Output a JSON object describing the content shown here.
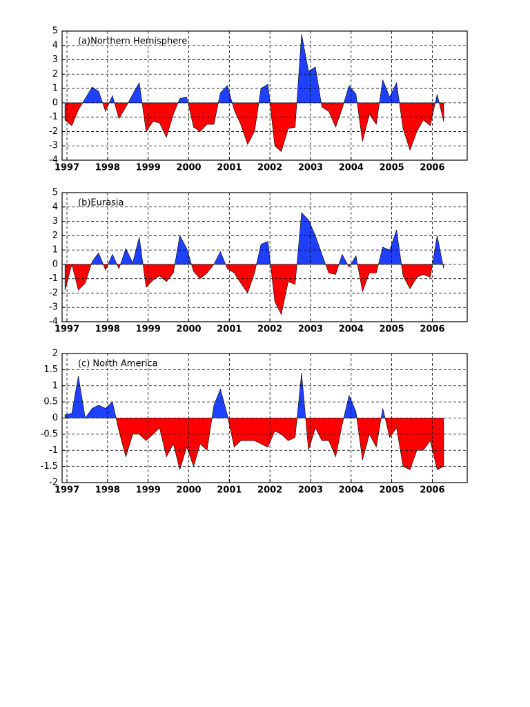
{
  "chart_data": [
    {
      "type": "area",
      "title": "(a)Northern Hemisphere",
      "xlim": [
        1996.88,
        2006.86
      ],
      "ylim": [
        -4,
        5
      ],
      "xticks": [
        1997,
        1998,
        1999,
        2000,
        2001,
        2002,
        2003,
        2004,
        2005,
        2006
      ],
      "yticks": [
        -4,
        -3,
        -2,
        -1,
        0,
        1,
        2,
        3,
        4,
        5
      ],
      "grid": true,
      "positive_color": "#2040ff",
      "negative_color": "#ff0000",
      "x": [
        1996.95,
        1997.12,
        1997.28,
        1997.45,
        1997.62,
        1997.78,
        1997.95,
        1998.12,
        1998.28,
        1998.45,
        1998.62,
        1998.78,
        1998.95,
        1999.12,
        1999.28,
        1999.45,
        1999.62,
        1999.78,
        1999.95,
        2000.12,
        2000.28,
        2000.45,
        2000.62,
        2000.78,
        2000.95,
        2001.12,
        2001.28,
        2001.45,
        2001.62,
        2001.78,
        2001.95,
        2002.12,
        2002.28,
        2002.45,
        2002.62,
        2002.78,
        2002.95,
        2003.12,
        2003.28,
        2003.45,
        2003.62,
        2003.78,
        2003.95,
        2004.12,
        2004.28,
        2004.45,
        2004.62,
        2004.78,
        2004.95,
        2005.12,
        2005.28,
        2005.45,
        2005.62,
        2005.78,
        2005.95,
        2006.12,
        2006.28
      ],
      "values": [
        -1.2,
        -1.6,
        -0.5,
        0.3,
        1.1,
        0.8,
        -0.6,
        0.5,
        -1.1,
        -0.3,
        0.6,
        1.4,
        -2.0,
        -1.3,
        -1.4,
        -2.4,
        -0.8,
        0.3,
        0.4,
        -1.7,
        -2.0,
        -1.5,
        -1.5,
        0.7,
        1.2,
        -0.5,
        -1.5,
        -2.9,
        -2.0,
        1.0,
        1.3,
        -3.0,
        -3.4,
        -1.8,
        -1.7,
        4.8,
        2.2,
        2.5,
        -0.3,
        -0.6,
        -1.7,
        -0.4,
        1.2,
        0.6,
        -2.7,
        -0.8,
        -1.5,
        1.6,
        0.4,
        1.4,
        -1.8,
        -3.3,
        -2.0,
        -1.2,
        -1.6,
        0.6,
        -1.3
      ]
    },
    {
      "type": "area",
      "title": "(b)Eurasia",
      "xlim": [
        1996.88,
        2006.86
      ],
      "ylim": [
        -4,
        5
      ],
      "xticks": [
        1997,
        1998,
        1999,
        2000,
        2001,
        2002,
        2003,
        2004,
        2005,
        2006
      ],
      "yticks": [
        -4,
        -3,
        -2,
        -1,
        0,
        1,
        2,
        3,
        4,
        5
      ],
      "grid": true,
      "positive_color": "#2040ff",
      "negative_color": "#ff0000",
      "x": [
        1996.95,
        1997.12,
        1997.28,
        1997.45,
        1997.62,
        1997.78,
        1997.95,
        1998.12,
        1998.28,
        1998.45,
        1998.62,
        1998.78,
        1998.95,
        1999.12,
        1999.28,
        1999.45,
        1999.62,
        1999.78,
        1999.95,
        2000.12,
        2000.28,
        2000.45,
        2000.62,
        2000.78,
        2000.95,
        2001.12,
        2001.28,
        2001.45,
        2001.62,
        2001.78,
        2001.95,
        2002.12,
        2002.28,
        2002.45,
        2002.62,
        2002.78,
        2002.95,
        2003.12,
        2003.28,
        2003.45,
        2003.62,
        2003.78,
        2003.95,
        2004.12,
        2004.28,
        2004.45,
        2004.62,
        2004.78,
        2004.95,
        2005.12,
        2005.28,
        2005.45,
        2005.62,
        2005.78,
        2005.95,
        2006.12,
        2006.28
      ],
      "values": [
        -1.8,
        0.0,
        -1.8,
        -1.3,
        0.2,
        0.8,
        -0.4,
        0.7,
        -0.3,
        1.1,
        0.1,
        1.9,
        -1.6,
        -1.1,
        -0.8,
        -1.2,
        -0.6,
        2.0,
        1.1,
        -0.5,
        -1.0,
        -0.6,
        0.0,
        0.9,
        -0.3,
        -0.6,
        -1.3,
        -2.0,
        -0.6,
        1.4,
        1.6,
        -2.6,
        -3.5,
        -1.2,
        -1.4,
        3.6,
        3.1,
        2.0,
        0.7,
        -0.6,
        -0.7,
        0.7,
        -0.2,
        0.6,
        -1.9,
        -0.6,
        -0.6,
        1.2,
        1.0,
        2.4,
        -0.8,
        -1.7,
        -0.9,
        -0.7,
        -0.9,
        2.0,
        -0.3
      ]
    },
    {
      "type": "area",
      "title": "(c) North America",
      "xlim": [
        1996.88,
        2006.86
      ],
      "ylim": [
        -2,
        2
      ],
      "xticks": [
        1997,
        1998,
        1999,
        2000,
        2001,
        2002,
        2003,
        2004,
        2005,
        2006
      ],
      "yticks": [
        -2,
        -1.5,
        -1,
        -0.5,
        0,
        0.5,
        1,
        1.5,
        2
      ],
      "grid": true,
      "positive_color": "#2040ff",
      "negative_color": "#ff0000",
      "x": [
        1996.95,
        1997.12,
        1997.28,
        1997.45,
        1997.62,
        1997.78,
        1997.95,
        1998.12,
        1998.28,
        1998.45,
        1998.62,
        1998.78,
        1998.95,
        1999.12,
        1999.28,
        1999.45,
        1999.62,
        1999.78,
        1999.95,
        2000.12,
        2000.28,
        2000.45,
        2000.62,
        2000.78,
        2000.95,
        2001.12,
        2001.28,
        2001.45,
        2001.62,
        2001.78,
        2001.95,
        2002.12,
        2002.28,
        2002.45,
        2002.62,
        2002.78,
        2002.95,
        2003.12,
        2003.28,
        2003.45,
        2003.62,
        2003.78,
        2003.95,
        2004.12,
        2004.28,
        2004.45,
        2004.62,
        2004.78,
        2004.95,
        2005.12,
        2005.28,
        2005.45,
        2005.62,
        2005.78,
        2005.95,
        2006.12,
        2006.28
      ],
      "values": [
        0.1,
        0.15,
        1.3,
        0.0,
        0.3,
        0.4,
        0.3,
        0.5,
        -0.4,
        -1.2,
        -0.5,
        -0.5,
        -0.7,
        -0.5,
        -0.3,
        -1.2,
        -0.8,
        -1.6,
        -0.9,
        -1.5,
        -0.8,
        -1.0,
        0.4,
        0.9,
        0.1,
        -0.9,
        -0.7,
        -0.7,
        -0.7,
        -0.8,
        -0.9,
        -0.4,
        -0.5,
        -0.7,
        -0.6,
        1.4,
        -1.0,
        -0.3,
        -0.7,
        -0.7,
        -1.2,
        -0.2,
        0.7,
        0.2,
        -1.3,
        -0.5,
        -0.9,
        0.3,
        -0.6,
        -0.3,
        -1.5,
        -1.6,
        -1.0,
        -1.0,
        -0.7,
        -1.6,
        -1.5
      ]
    }
  ]
}
